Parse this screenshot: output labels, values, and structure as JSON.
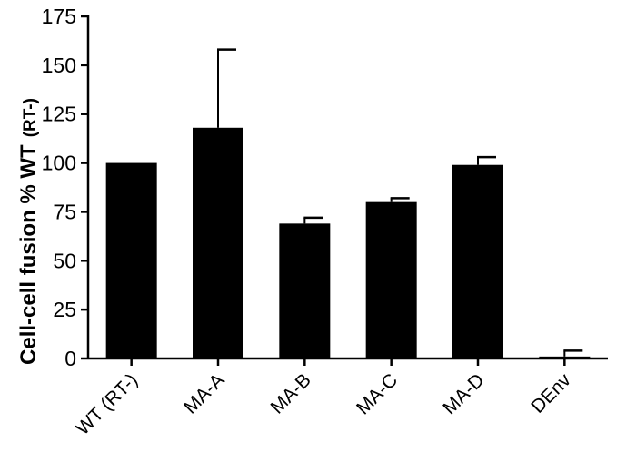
{
  "chart_data": {
    "type": "bar",
    "categories": [
      "WT (RT-)",
      "MA-A",
      "MA-B",
      "MA-C",
      "MA-D",
      "DEnv"
    ],
    "values": [
      100,
      118,
      69,
      80,
      99,
      1
    ],
    "errors": [
      0,
      40,
      3,
      2,
      4,
      3
    ],
    "ylabel": "Cell-cell fusion % WT",
    "ylabel_suffix": "(RT-)",
    "ylim": [
      0,
      175
    ],
    "yticks": [
      0,
      25,
      50,
      75,
      100,
      125,
      150,
      175
    ],
    "grid": false,
    "legend": "none",
    "bar_color": "#000000"
  }
}
